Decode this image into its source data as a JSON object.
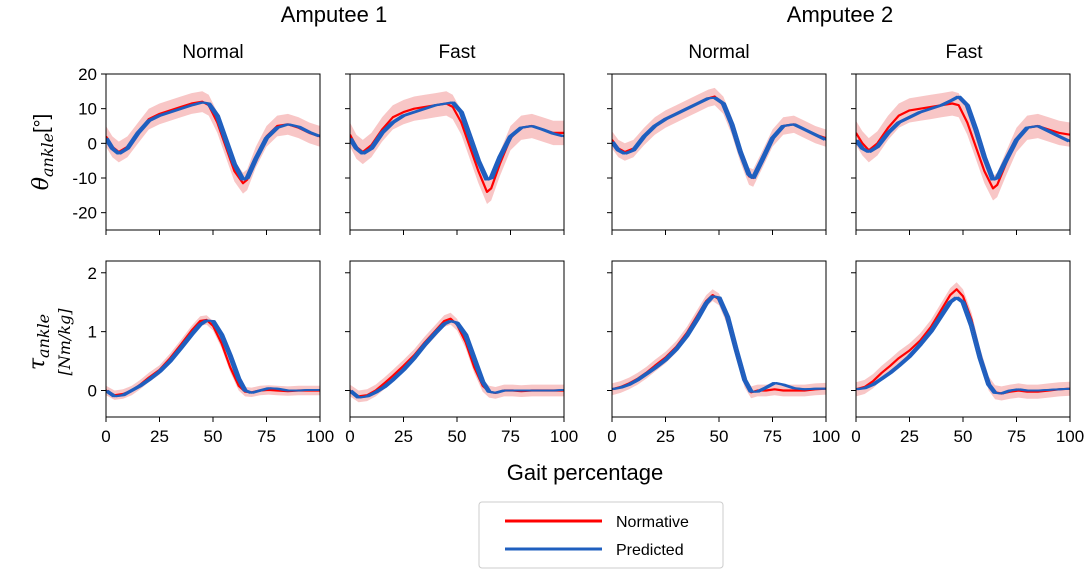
{
  "groups": [
    "Amputee 1",
    "Amputee 2"
  ],
  "x_axis_label": "Gait percentage",
  "y_labels": {
    "angle_symbol": "θ",
    "angle_sub": "ankle",
    "angle_unit": "[°]",
    "torque_symbol": "τ",
    "torque_sub": "ankle",
    "torque_unit": "[Nm/kg]"
  },
  "legend": {
    "normative": {
      "label": "Normative",
      "color": "#ff0000"
    },
    "predicted": {
      "label": "Predicted",
      "color": "#1f5fbf"
    }
  },
  "chart_data": [
    {
      "type": "line",
      "title": "Normal",
      "group": "Amputee 1",
      "quantity": "angle",
      "xlim": [
        0,
        100
      ],
      "ylim": [
        -25,
        20
      ],
      "xticks": [
        0,
        25,
        50,
        75,
        100
      ],
      "yticks": [
        -20,
        -10,
        0,
        10,
        20
      ],
      "x": [
        0,
        3,
        6,
        10,
        15,
        20,
        25,
        30,
        35,
        40,
        45,
        48,
        52,
        56,
        60,
        64,
        66,
        70,
        75,
        80,
        85,
        90,
        95,
        100
      ],
      "series": [
        {
          "name": "Normative",
          "values": [
            2,
            -1,
            -2.5,
            -1,
            3,
            7,
            8.5,
            9.5,
            10.5,
            11.5,
            12,
            11,
            6,
            -1,
            -8,
            -11.5,
            -10.5,
            -4,
            2,
            5,
            5.5,
            4.5,
            3,
            2
          ],
          "band": 3
        },
        {
          "name": "Predicted",
          "values": [
            1.5,
            -1.5,
            -3,
            -1.5,
            3,
            6.5,
            8,
            9,
            10,
            11,
            11.8,
            11.5,
            8,
            1,
            -6,
            -10.5,
            -10,
            -4.5,
            1.5,
            4.5,
            5.5,
            4.8,
            3.2,
            2
          ]
        }
      ]
    },
    {
      "type": "line",
      "title": "Fast",
      "group": "Amputee 1",
      "quantity": "angle",
      "xlim": [
        0,
        100
      ],
      "ylim": [
        -25,
        20
      ],
      "xticks": [
        0,
        25,
        50,
        75,
        100
      ],
      "yticks": [
        -20,
        -10,
        0,
        10,
        20
      ],
      "x": [
        0,
        3,
        6,
        10,
        15,
        20,
        25,
        30,
        35,
        40,
        45,
        48,
        52,
        56,
        60,
        64,
        66,
        70,
        75,
        80,
        85,
        90,
        95,
        100
      ],
      "series": [
        {
          "name": "Normative",
          "values": [
            2.5,
            -1,
            -2.5,
            -0.5,
            4,
            7.5,
            9,
            10,
            10.5,
            11,
            11.5,
            10.5,
            6,
            -1,
            -8,
            -14,
            -13,
            -6,
            1.5,
            4.5,
            5,
            4,
            3,
            3
          ],
          "band": 3.5
        },
        {
          "name": "Predicted",
          "values": [
            1.5,
            -1.5,
            -3,
            -1.5,
            3,
            6,
            8,
            9,
            10,
            11,
            11.5,
            11.8,
            9,
            2,
            -5,
            -10.5,
            -10,
            -4,
            2,
            4.5,
            5,
            4,
            2.8,
            2
          ]
        }
      ]
    },
    {
      "type": "line",
      "title": "Normal",
      "group": "Amputee 2",
      "quantity": "angle",
      "xlim": [
        0,
        100
      ],
      "ylim": [
        -25,
        20
      ],
      "xticks": [
        0,
        25,
        50,
        75,
        100
      ],
      "yticks": [
        -20,
        -10,
        0,
        10,
        20
      ],
      "x": [
        0,
        3,
        6,
        10,
        15,
        20,
        25,
        30,
        35,
        40,
        45,
        48,
        52,
        56,
        60,
        64,
        66,
        70,
        75,
        80,
        85,
        90,
        95,
        100
      ],
      "series": [
        {
          "name": "Normative",
          "values": [
            1,
            -1.5,
            -2.5,
            -1.5,
            2,
            5,
            7,
            8.5,
            10,
            11.5,
            13,
            13.5,
            11,
            5,
            -3,
            -9.5,
            -10,
            -5,
            1.5,
            5,
            5.5,
            4,
            2.5,
            1.5
          ],
          "band": 2.5
        },
        {
          "name": "Predicted",
          "values": [
            0.5,
            -2,
            -3,
            -2,
            2,
            5,
            7,
            8.5,
            10,
            11.5,
            13,
            13.2,
            11.5,
            5.5,
            -2.5,
            -9,
            -10,
            -5,
            1.5,
            5,
            5.5,
            4,
            2.5,
            1
          ]
        }
      ]
    },
    {
      "type": "line",
      "title": "Fast",
      "group": "Amputee 2",
      "quantity": "angle",
      "xlim": [
        0,
        100
      ],
      "ylim": [
        -25,
        20
      ],
      "xticks": [
        0,
        25,
        50,
        75,
        100
      ],
      "yticks": [
        -20,
        -10,
        0,
        10,
        20
      ],
      "x": [
        0,
        3,
        6,
        10,
        15,
        20,
        25,
        30,
        35,
        40,
        45,
        48,
        52,
        56,
        60,
        64,
        66,
        70,
        75,
        80,
        85,
        90,
        95,
        100
      ],
      "series": [
        {
          "name": "Normative",
          "values": [
            3,
            0,
            -2,
            0,
            4.5,
            8,
            9.5,
            10,
            10.5,
            11,
            11.5,
            11,
            6,
            -1,
            -8,
            -13,
            -12,
            -6,
            1,
            4.5,
            5,
            4,
            3,
            2.5
          ],
          "band": 3.5
        },
        {
          "name": "Predicted",
          "values": [
            1,
            -1.5,
            -2.5,
            -1,
            3,
            6,
            7.5,
            9,
            10,
            11,
            12.5,
            13.5,
            11,
            4,
            -4,
            -10.5,
            -10,
            -5,
            1,
            4.5,
            5,
            3.5,
            2,
            0.5
          ]
        }
      ]
    },
    {
      "type": "line",
      "title": "",
      "group": "Amputee 1",
      "quantity": "torque",
      "xlim": [
        0,
        100
      ],
      "ylim": [
        -0.45,
        2.2
      ],
      "xticks": [
        0,
        25,
        50,
        75,
        100
      ],
      "yticks": [
        0,
        1,
        2
      ],
      "x": [
        0,
        4,
        8,
        12,
        16,
        20,
        25,
        30,
        35,
        40,
        44,
        47,
        50,
        54,
        58,
        62,
        65,
        68,
        72,
        76,
        80,
        85,
        90,
        95,
        100
      ],
      "series": [
        {
          "name": "Normative",
          "values": [
            0,
            -0.08,
            -0.06,
            0,
            0.1,
            0.22,
            0.35,
            0.55,
            0.78,
            1.02,
            1.18,
            1.2,
            1.1,
            0.8,
            0.4,
            0.08,
            -0.02,
            -0.03,
            0,
            0.01,
            0,
            -0.01,
            0,
            0,
            0
          ],
          "band": 0.08
        },
        {
          "name": "Predicted",
          "values": [
            0,
            -0.1,
            -0.08,
            0,
            0.08,
            0.18,
            0.32,
            0.5,
            0.72,
            0.95,
            1.12,
            1.19,
            1.18,
            0.95,
            0.6,
            0.2,
            0,
            -0.04,
            0,
            0.04,
            0.03,
            0,
            0,
            0.01,
            0.01
          ]
        }
      ]
    },
    {
      "type": "line",
      "title": "",
      "group": "Amputee 1",
      "quantity": "torque",
      "xlim": [
        0,
        100
      ],
      "ylim": [
        -0.45,
        2.2
      ],
      "xticks": [
        0,
        25,
        50,
        75,
        100
      ],
      "yticks": [
        0,
        1,
        2
      ],
      "x": [
        0,
        4,
        8,
        12,
        16,
        20,
        25,
        30,
        35,
        40,
        44,
        47,
        50,
        54,
        58,
        62,
        65,
        68,
        72,
        76,
        80,
        85,
        90,
        95,
        100
      ],
      "series": [
        {
          "name": "Normative",
          "values": [
            0,
            -0.1,
            -0.08,
            0,
            0.12,
            0.25,
            0.42,
            0.6,
            0.82,
            1.02,
            1.18,
            1.22,
            1.12,
            0.82,
            0.4,
            0.08,
            -0.02,
            -0.04,
            0,
            0,
            -0.01,
            0,
            0,
            0,
            0
          ],
          "band": 0.1
        },
        {
          "name": "Predicted",
          "values": [
            0,
            -0.12,
            -0.1,
            -0.03,
            0.06,
            0.18,
            0.35,
            0.55,
            0.78,
            0.98,
            1.13,
            1.18,
            1.15,
            0.95,
            0.55,
            0.15,
            -0.02,
            -0.04,
            0,
            0,
            0,
            0,
            0,
            0,
            0.01
          ]
        }
      ]
    },
    {
      "type": "line",
      "title": "",
      "group": "Amputee 2",
      "quantity": "torque",
      "xlim": [
        0,
        100
      ],
      "ylim": [
        -0.45,
        2.2
      ],
      "xticks": [
        0,
        25,
        50,
        75,
        100
      ],
      "yticks": [
        0,
        1,
        2
      ],
      "x": [
        0,
        4,
        8,
        12,
        16,
        20,
        25,
        30,
        35,
        40,
        44,
        47,
        50,
        54,
        58,
        62,
        65,
        68,
        72,
        76,
        80,
        85,
        90,
        95,
        100
      ],
      "series": [
        {
          "name": "Normative",
          "values": [
            0.02,
            0.06,
            0.12,
            0.2,
            0.3,
            0.42,
            0.56,
            0.74,
            0.98,
            1.28,
            1.52,
            1.62,
            1.55,
            1.2,
            0.65,
            0.15,
            -0.03,
            0,
            0,
            0.02,
            0,
            0,
            0,
            0.02,
            0.03
          ],
          "band": 0.1
        },
        {
          "name": "Predicted",
          "values": [
            0.02,
            0.05,
            0.1,
            0.18,
            0.28,
            0.38,
            0.52,
            0.7,
            0.93,
            1.22,
            1.48,
            1.6,
            1.58,
            1.25,
            0.7,
            0.18,
            -0.02,
            -0.02,
            0.05,
            0.13,
            0.1,
            0.04,
            0.02,
            0.03,
            0.03
          ]
        }
      ]
    },
    {
      "type": "line",
      "title": "",
      "group": "Amputee 2",
      "quantity": "torque",
      "xlim": [
        0,
        100
      ],
      "ylim": [
        -0.45,
        2.2
      ],
      "xticks": [
        0,
        25,
        50,
        75,
        100
      ],
      "yticks": [
        0,
        1,
        2
      ],
      "x": [
        0,
        4,
        8,
        12,
        16,
        20,
        25,
        30,
        35,
        40,
        44,
        47,
        50,
        54,
        58,
        62,
        65,
        68,
        72,
        76,
        80,
        85,
        90,
        95,
        100
      ],
      "series": [
        {
          "name": "Normative",
          "values": [
            0.02,
            0.06,
            0.16,
            0.3,
            0.42,
            0.55,
            0.68,
            0.85,
            1.08,
            1.38,
            1.62,
            1.72,
            1.6,
            1.2,
            0.6,
            0.12,
            -0.03,
            -0.05,
            -0.02,
            0,
            -0.02,
            -0.02,
            0,
            0.02,
            0.03
          ],
          "band": 0.12
        },
        {
          "name": "Predicted",
          "values": [
            0.02,
            0.04,
            0.1,
            0.2,
            0.3,
            0.42,
            0.58,
            0.78,
            1.0,
            1.28,
            1.5,
            1.58,
            1.5,
            1.1,
            0.55,
            0.1,
            -0.04,
            -0.05,
            0,
            0.02,
            0,
            0,
            0.01,
            0.02,
            0.03
          ]
        }
      ]
    }
  ]
}
